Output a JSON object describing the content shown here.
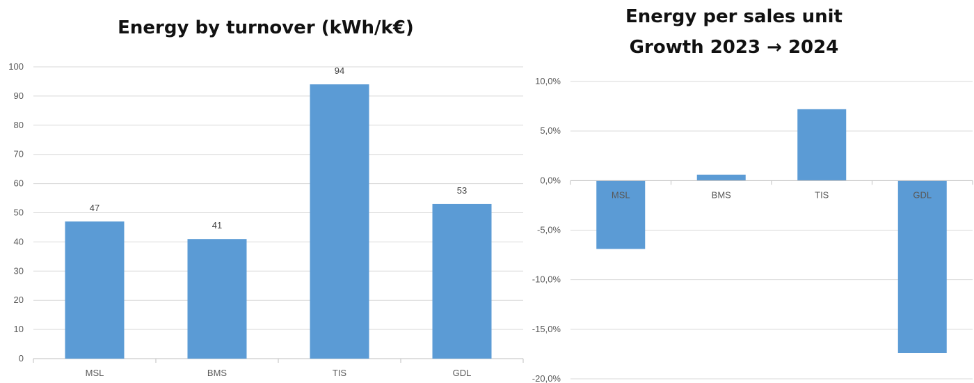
{
  "chart_data": [
    {
      "type": "bar",
      "title": "Energy by turnover (kWh/k€)",
      "categories": [
        "MSL",
        "BMS",
        "TIS",
        "GDL"
      ],
      "values": [
        47,
        41,
        94,
        53
      ],
      "data_labels": [
        "47",
        "41",
        "94",
        "53"
      ],
      "ylim": [
        0,
        100
      ],
      "yticks": [
        0,
        10,
        20,
        30,
        40,
        50,
        60,
        70,
        80,
        90,
        100
      ],
      "ytick_labels": [
        "0",
        "10",
        "20",
        "30",
        "40",
        "50",
        "60",
        "70",
        "80",
        "90",
        "100"
      ],
      "grid": true,
      "color": "#5b9bd5"
    },
    {
      "type": "bar",
      "title_lines": [
        "Energy per sales unit",
        "Growth 2023 → 2024"
      ],
      "categories": [
        "MSL",
        "BMS",
        "TIS",
        "GDL"
      ],
      "values": [
        -6.9,
        0.6,
        7.2,
        -17.4
      ],
      "ylim": [
        -20,
        10
      ],
      "yticks": [
        -20,
        -15,
        -10,
        -5,
        0,
        5,
        10
      ],
      "ytick_labels": [
        "-20,0%",
        "-15,0%",
        "-10,0%",
        "-5,0%",
        "0,0%",
        "5,0%",
        "10,0%"
      ],
      "grid": true,
      "color": "#5b9bd5"
    }
  ]
}
